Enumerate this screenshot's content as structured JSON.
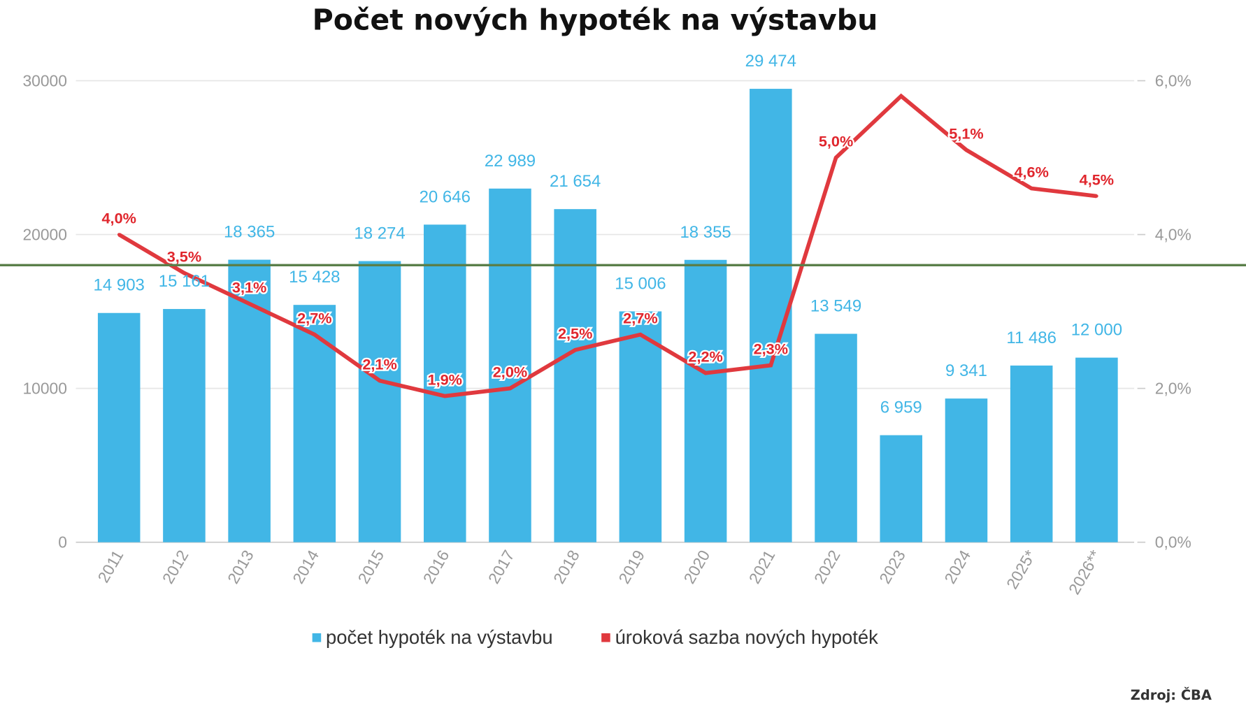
{
  "chart_data": {
    "type": "bar+line",
    "title": "Počet nových hypoték na výstavbu",
    "categories": [
      "2011",
      "2012",
      "2013",
      "2014",
      "2015",
      "2016",
      "2017",
      "2018",
      "2019",
      "2020",
      "2021",
      "2022",
      "2023",
      "2024",
      "2025*",
      "2026**"
    ],
    "series": [
      {
        "name": "počet hypoték na výstavbu",
        "type": "bar",
        "axis": "left",
        "color": "#41b6e6",
        "values": [
          14903,
          15161,
          18365,
          15428,
          18274,
          20646,
          22989,
          21654,
          15006,
          18355,
          29474,
          13549,
          6959,
          9341,
          11486,
          12000
        ],
        "labels": [
          "14 903",
          "15 161",
          "18 365",
          "15 428",
          "18 274",
          "20 646",
          "22 989",
          "21 654",
          "15 006",
          "18 355",
          "29 474",
          "13 549",
          "6 959",
          "9 341",
          "11 486",
          "12 000"
        ]
      },
      {
        "name": "úroková sazba nových hypoték",
        "type": "line",
        "axis": "right",
        "color": "#e0393e",
        "values": [
          4.0,
          3.5,
          3.1,
          2.7,
          2.1,
          1.9,
          2.0,
          2.5,
          2.7,
          2.2,
          2.3,
          5.0,
          5.8,
          5.1,
          4.6,
          4.5
        ],
        "labels": [
          "4,0%",
          "3,5%",
          "3,1%",
          "2,7%",
          "2,1%",
          "1,9%",
          "2,0%",
          "2,5%",
          "2,7%",
          "2,2%",
          "2,3%",
          "5,0%",
          "",
          "5,1%",
          "4,6%",
          "4,5%"
        ]
      }
    ],
    "y_left": {
      "range": [
        0,
        30000
      ],
      "ticks": [
        "0",
        "10000",
        "20000",
        "30000"
      ]
    },
    "y_right": {
      "range": [
        0,
        6
      ],
      "ticks": [
        "0,0%",
        "2,0%",
        "4,0%",
        "6,0%"
      ]
    },
    "grid": true,
    "legend_position": "bottom",
    "reference_line_color": "#5a7f4a",
    "source": "Zdroj: ČBA"
  }
}
